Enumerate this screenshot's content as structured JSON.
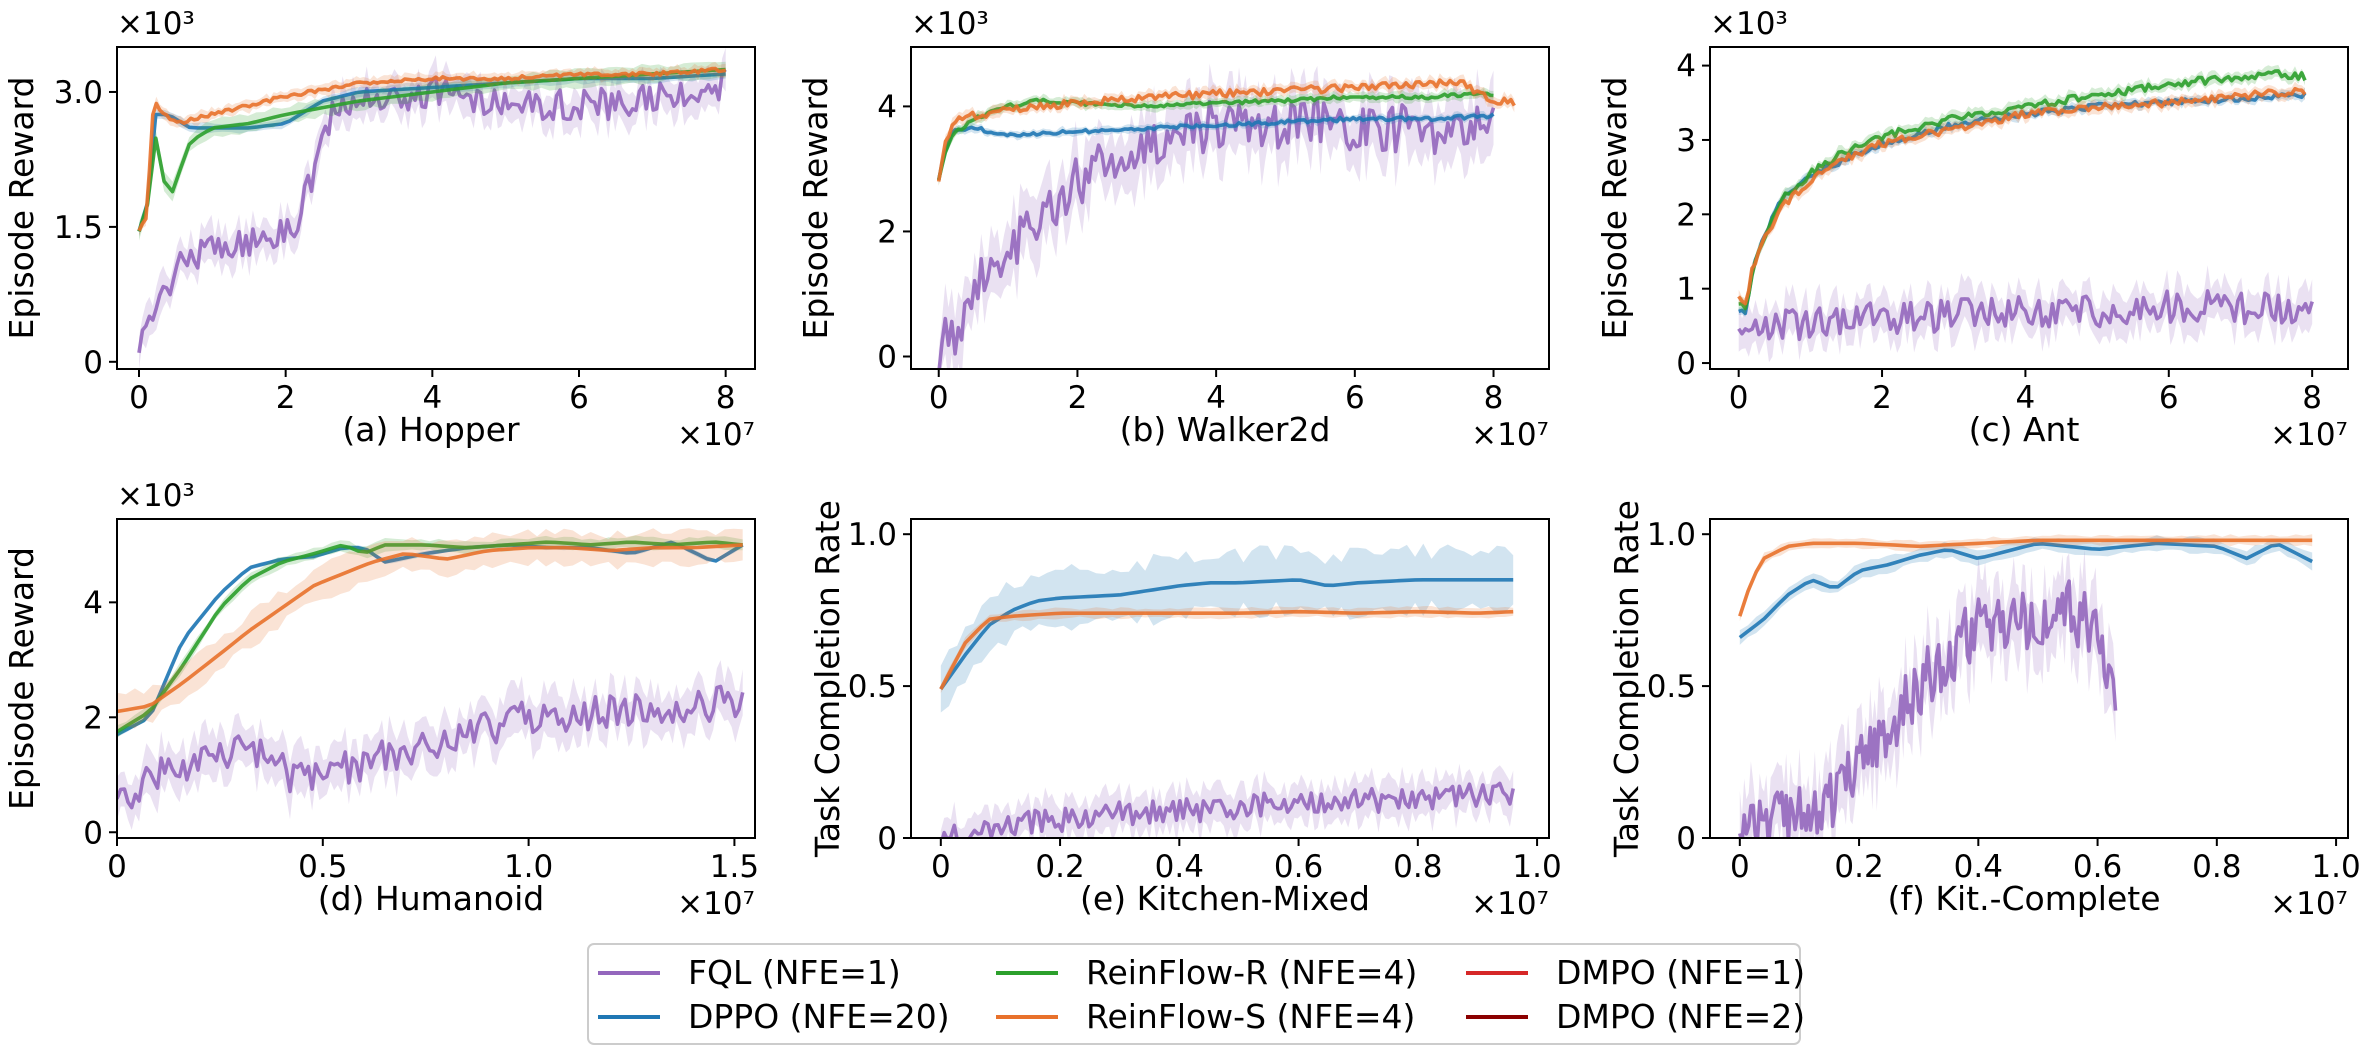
{
  "figure": {
    "legend": [
      {
        "label": "FQL (NFE=1)",
        "color": "#9467bd"
      },
      {
        "label": "DPPO (NFE=20)",
        "color": "#1f77b4"
      },
      {
        "label": "ReinFlow-R (NFE=4)",
        "color": "#2ca02c"
      },
      {
        "label": "ReinFlow-S (NFE=4)",
        "color": "#e8712b"
      },
      {
        "label": "DMPO (NFE=1)",
        "color": "#d62728"
      },
      {
        "label": "DMPO (NFE=2)",
        "color": "#8b0000"
      }
    ]
  },
  "chart_data": [
    {
      "type": "line",
      "title": "(a) Hopper",
      "ylabel": "Episode Reward",
      "x_scale": "×10⁷",
      "y_scale": "×10³",
      "xlim": [
        -0.3,
        8.4
      ],
      "ylim": [
        -0.08,
        3.5
      ],
      "xticks": [
        0,
        2,
        4,
        6,
        8
      ],
      "xtick_labels": [
        "0",
        "2",
        "4",
        "6",
        "8"
      ],
      "yticks": [
        0,
        1.5,
        3.0
      ],
      "ytick_labels": [
        "0",
        "1.5",
        "3.0"
      ],
      "series": [
        {
          "name": "FQL (NFE=1)",
          "color": "#9467bd",
          "noise": 0.18,
          "band": 0.25,
          "x": [
            0,
            0.15,
            0.35,
            0.5,
            0.8,
            1.2,
            1.6,
            2.0,
            2.2,
            2.4,
            2.6,
            3.0,
            3.5,
            4.0,
            5.0,
            6.0,
            7.0,
            8.0
          ],
          "y": [
            0.05,
            0.6,
            0.75,
            1.1,
            1.2,
            1.3,
            1.35,
            1.45,
            1.6,
            2.2,
            2.7,
            2.9,
            2.95,
            3.0,
            2.9,
            2.85,
            2.9,
            3.1
          ]
        },
        {
          "name": "DPPO (NFE=20)",
          "color": "#1f77b4",
          "noise": 0,
          "band": 0.07,
          "x": [
            0,
            0.1,
            0.2,
            0.4,
            0.7,
            1.0,
            1.5,
            2.0,
            2.5,
            3.0,
            4.0,
            5.0,
            6.0,
            7.0,
            8.0
          ],
          "y": [
            1.45,
            1.6,
            2.75,
            2.75,
            2.6,
            2.6,
            2.6,
            2.65,
            2.9,
            3.0,
            3.05,
            3.1,
            3.15,
            3.15,
            3.2
          ]
        },
        {
          "name": "ReinFlow-R (NFE=4)",
          "color": "#2ca02c",
          "noise": 0,
          "band": 0.12,
          "x": [
            0,
            0.1,
            0.2,
            0.3,
            0.4,
            0.5,
            0.7,
            1.0,
            1.5,
            2.0,
            3.0,
            4.0,
            5.0,
            6.0,
            7.0,
            8.0
          ],
          "y": [
            1.45,
            1.6,
            2.6,
            2.2,
            1.75,
            2.0,
            2.45,
            2.6,
            2.65,
            2.75,
            2.9,
            3.0,
            3.1,
            3.15,
            3.2,
            3.25
          ]
        },
        {
          "name": "ReinFlow-S (NFE=4)",
          "color": "#e8712b",
          "noise": 0.02,
          "band": 0.08,
          "x": [
            0,
            0.1,
            0.2,
            0.3,
            0.5,
            1.0,
            1.5,
            2.0,
            3.0,
            4.0,
            5.0,
            6.0,
            7.0,
            8.0
          ],
          "y": [
            1.45,
            1.6,
            2.9,
            2.8,
            2.65,
            2.75,
            2.85,
            2.95,
            3.1,
            3.15,
            3.15,
            3.2,
            3.2,
            3.25
          ]
        }
      ]
    },
    {
      "type": "line",
      "title": "(b) Walker2d",
      "ylabel": "Episode Reward",
      "x_scale": "×10⁷",
      "y_scale": "×10³",
      "xlim": [
        -0.4,
        8.8
      ],
      "ylim": [
        -0.2,
        4.95
      ],
      "xticks": [
        0,
        2,
        4,
        6,
        8
      ],
      "xtick_labels": [
        "0",
        "2",
        "4",
        "6",
        "8"
      ],
      "yticks": [
        0,
        2,
        4
      ],
      "ytick_labels": [
        "0",
        "2",
        "4"
      ],
      "series": [
        {
          "name": "FQL (NFE=1)",
          "color": "#9467bd",
          "noise": 0.4,
          "band": 0.65,
          "x": [
            0,
            0.3,
            0.6,
            1.0,
            1.5,
            2.0,
            2.5,
            3.0,
            3.5,
            4.0,
            5.0,
            6.0,
            7.0,
            8.0
          ],
          "y": [
            0.1,
            0.5,
            1.3,
            1.7,
            2.3,
            2.8,
            3.2,
            3.3,
            3.6,
            3.7,
            3.7,
            3.7,
            3.6,
            3.7
          ]
        },
        {
          "name": "DPPO (NFE=20)",
          "color": "#1f77b4",
          "noise": 0.03,
          "band": 0.08,
          "x": [
            0,
            0.1,
            0.2,
            0.5,
            1.0,
            2.0,
            3.0,
            4.0,
            5.0,
            6.0,
            7.0,
            8.0
          ],
          "y": [
            2.85,
            3.3,
            3.6,
            3.65,
            3.55,
            3.6,
            3.65,
            3.7,
            3.75,
            3.8,
            3.8,
            3.85
          ]
        },
        {
          "name": "ReinFlow-R (NFE=4)",
          "color": "#2ca02c",
          "noise": 0.03,
          "band": 0.1,
          "x": [
            0,
            0.1,
            0.2,
            0.5,
            1.0,
            1.5,
            2.0,
            3.0,
            4.0,
            5.0,
            6.0,
            7.0,
            8.0
          ],
          "y": [
            2.85,
            3.3,
            3.55,
            3.8,
            4.0,
            4.1,
            4.05,
            4.0,
            4.05,
            4.1,
            4.15,
            4.15,
            4.2
          ]
        },
        {
          "name": "ReinFlow-S (NFE=4)",
          "color": "#e8712b",
          "noise": 0.06,
          "band": 0.12,
          "x": [
            0,
            0.1,
            0.2,
            0.5,
            1.0,
            2.0,
            3.0,
            4.0,
            5.0,
            6.0,
            7.0,
            7.5,
            8.0,
            8.3
          ],
          "y": [
            2.85,
            3.4,
            3.75,
            3.85,
            3.95,
            4.05,
            4.15,
            4.2,
            4.25,
            4.3,
            4.35,
            4.4,
            4.1,
            4.05
          ]
        }
      ]
    },
    {
      "type": "line",
      "title": "(c) Ant",
      "ylabel": "Episode Reward",
      "x_scale": "×10⁷",
      "y_scale": "×10³",
      "xlim": [
        -0.4,
        8.5
      ],
      "ylim": [
        -0.08,
        4.25
      ],
      "xticks": [
        0,
        2,
        4,
        6,
        8
      ],
      "xtick_labels": [
        "0",
        "2",
        "4",
        "6",
        "8"
      ],
      "yticks": [
        0,
        1,
        2,
        3,
        4
      ],
      "ytick_labels": [
        "0",
        "1",
        "2",
        "3",
        "4"
      ],
      "series": [
        {
          "name": "FQL (NFE=1)",
          "color": "#9467bd",
          "noise": 0.22,
          "band": 0.35,
          "x": [
            0,
            0.3,
            1.0,
            2.0,
            3.0,
            4.0,
            5.0,
            6.0,
            7.0,
            8.0
          ],
          "y": [
            0.5,
            0.45,
            0.55,
            0.6,
            0.65,
            0.7,
            0.7,
            0.75,
            0.75,
            0.7
          ]
        },
        {
          "name": "DPPO (NFE=20)",
          "color": "#1f77b4",
          "noise": 0.04,
          "band": 0.08,
          "x": [
            0,
            0.1,
            0.2,
            0.4,
            0.6,
            1.0,
            1.5,
            2.0,
            3.0,
            4.0,
            5.0,
            6.0,
            7.0,
            7.9
          ],
          "y": [
            0.7,
            0.7,
            1.3,
            1.8,
            2.2,
            2.5,
            2.75,
            2.95,
            3.2,
            3.35,
            3.45,
            3.5,
            3.55,
            3.6
          ]
        },
        {
          "name": "ReinFlow-R (NFE=4)",
          "color": "#2ca02c",
          "noise": 0.05,
          "band": 0.1,
          "x": [
            0,
            0.1,
            0.2,
            0.4,
            0.6,
            1.0,
            1.5,
            2.0,
            3.0,
            4.0,
            5.0,
            6.0,
            7.0,
            7.5,
            7.9
          ],
          "y": [
            0.8,
            0.7,
            1.3,
            1.8,
            2.2,
            2.55,
            2.85,
            3.05,
            3.3,
            3.45,
            3.6,
            3.75,
            3.85,
            3.9,
            3.85
          ]
        },
        {
          "name": "ReinFlow-S (NFE=4)",
          "color": "#e8712b",
          "noise": 0.05,
          "band": 0.1,
          "x": [
            0,
            0.1,
            0.2,
            0.4,
            0.6,
            1.0,
            1.5,
            2.0,
            3.0,
            4.0,
            5.0,
            6.0,
            7.0,
            7.9
          ],
          "y": [
            0.9,
            0.8,
            1.3,
            1.75,
            2.1,
            2.45,
            2.75,
            2.95,
            3.15,
            3.35,
            3.45,
            3.5,
            3.6,
            3.65
          ]
        }
      ]
    },
    {
      "type": "line",
      "title": "(d) Humanoid",
      "ylabel": "Episode Reward",
      "x_scale": "×10⁷",
      "y_scale": "×10³",
      "xlim": [
        0,
        1.55
      ],
      "ylim": [
        -0.1,
        5.45
      ],
      "xticks": [
        0,
        0.5,
        1.0,
        1.5
      ],
      "xtick_labels": [
        "0",
        "0.5",
        "1.0",
        "1.5"
      ],
      "yticks": [
        0,
        2,
        4
      ],
      "ytick_labels": [
        "0",
        "2",
        "4"
      ],
      "series": [
        {
          "name": "FQL (NFE=1)",
          "color": "#9467bd",
          "noise": 0.3,
          "band": 0.5,
          "x": [
            0,
            0.05,
            0.1,
            0.2,
            0.3,
            0.4,
            0.42,
            0.5,
            0.6,
            0.7,
            0.8,
            1.0,
            1.2,
            1.4,
            1.52
          ],
          "y": [
            0.4,
            0.7,
            1.0,
            1.3,
            1.4,
            1.3,
            0.85,
            1.0,
            1.2,
            1.4,
            1.6,
            2.0,
            2.1,
            2.2,
            2.3
          ]
        },
        {
          "name": "DPPO (NFE=20)",
          "color": "#1f77b4",
          "noise": 0,
          "band": 0.05,
          "x": [
            0,
            0.08,
            0.16,
            0.25,
            0.32,
            0.4,
            0.48,
            0.55,
            0.6,
            0.65,
            0.75,
            0.85,
            0.95,
            1.05,
            1.15,
            1.25,
            1.35,
            1.45,
            1.52
          ],
          "y": [
            1.7,
            2.0,
            3.35,
            4.15,
            4.6,
            4.75,
            4.8,
            4.95,
            4.95,
            4.7,
            4.85,
            4.95,
            5.0,
            4.95,
            4.95,
            4.85,
            5.05,
            4.7,
            5.0
          ]
        },
        {
          "name": "ReinFlow-R (NFE=4)",
          "color": "#2ca02c",
          "noise": 0,
          "band": 0.12,
          "x": [
            0,
            0.08,
            0.16,
            0.25,
            0.32,
            0.4,
            0.48,
            0.55,
            0.6,
            0.65,
            0.75,
            0.85,
            0.95,
            1.05,
            1.15,
            1.25,
            1.35,
            1.45,
            1.52
          ],
          "y": [
            1.75,
            2.1,
            2.9,
            3.9,
            4.4,
            4.7,
            4.85,
            5.0,
            4.85,
            5.0,
            5.0,
            4.95,
            5.0,
            5.05,
            5.0,
            5.05,
            5.0,
            5.05,
            5.0
          ]
        },
        {
          "name": "ReinFlow-S (NFE=4)",
          "color": "#e8712b",
          "noise": 0,
          "band": 0.35,
          "x": [
            0,
            0.08,
            0.16,
            0.25,
            0.32,
            0.4,
            0.48,
            0.55,
            0.62,
            0.7,
            0.8,
            0.9,
            1.0,
            1.1,
            1.2,
            1.3,
            1.4,
            1.52
          ],
          "y": [
            2.1,
            2.2,
            2.6,
            3.1,
            3.5,
            3.9,
            4.3,
            4.5,
            4.7,
            4.85,
            4.75,
            4.9,
            4.95,
            4.95,
            4.9,
            4.95,
            4.95,
            5.0
          ]
        }
      ]
    },
    {
      "type": "line",
      "title": "(e) Kitchen-Mixed",
      "ylabel": "Task Completion Rate",
      "x_scale": "×10⁷",
      "y_scale": "",
      "xlim": [
        -0.05,
        1.02
      ],
      "ylim": [
        0,
        1.05
      ],
      "xticks": [
        0,
        0.2,
        0.4,
        0.6,
        0.8,
        1.0
      ],
      "xtick_labels": [
        "0",
        "0.2",
        "0.4",
        "0.6",
        "0.8",
        "1.0"
      ],
      "yticks": [
        0,
        0.5,
        1.0
      ],
      "ytick_labels": [
        "0",
        "0.5",
        "1.0"
      ],
      "series": [
        {
          "name": "FQL (NFE=1)",
          "color": "#9467bd",
          "noise": 0.04,
          "band": 0.08,
          "x": [
            0,
            0.05,
            0.1,
            0.2,
            0.3,
            0.4,
            0.5,
            0.6,
            0.7,
            0.8,
            0.9,
            0.96
          ],
          "y": [
            0.0,
            0.02,
            0.04,
            0.06,
            0.08,
            0.09,
            0.1,
            0.12,
            0.12,
            0.13,
            0.14,
            0.15
          ]
        },
        {
          "name": "DPPO (NFE=20)",
          "color": "#1f77b4",
          "noise": 0,
          "band": 0.12,
          "x": [
            0,
            0.04,
            0.08,
            0.12,
            0.16,
            0.2,
            0.3,
            0.4,
            0.45,
            0.5,
            0.6,
            0.65,
            0.7,
            0.8,
            0.9,
            0.96
          ],
          "y": [
            0.49,
            0.6,
            0.7,
            0.75,
            0.78,
            0.79,
            0.8,
            0.83,
            0.84,
            0.84,
            0.85,
            0.83,
            0.84,
            0.85,
            0.85,
            0.85
          ]
        },
        {
          "name": "ReinFlow-S (NFE=4)",
          "color": "#e8712b",
          "noise": 0,
          "band": 0.02,
          "x": [
            0,
            0.04,
            0.08,
            0.12,
            0.2,
            0.3,
            0.4,
            0.5,
            0.6,
            0.7,
            0.8,
            0.9,
            0.96
          ],
          "y": [
            0.49,
            0.64,
            0.72,
            0.73,
            0.74,
            0.74,
            0.74,
            0.74,
            0.745,
            0.74,
            0.745,
            0.74,
            0.745
          ]
        }
      ]
    },
    {
      "type": "line",
      "title": "(f) Kit.-Complete",
      "ylabel": "Task Completion Rate",
      "x_scale": "×10⁷",
      "y_scale": "",
      "xlim": [
        -0.05,
        1.02
      ],
      "ylim": [
        0,
        1.05
      ],
      "xticks": [
        0,
        0.2,
        0.4,
        0.6,
        0.8,
        1.0
      ],
      "xtick_labels": [
        "0",
        "0.2",
        "0.4",
        "0.6",
        "0.8",
        "1.0"
      ],
      "yticks": [
        0,
        0.5,
        1.0
      ],
      "ytick_labels": [
        "0",
        "0.5",
        "1.0"
      ],
      "series": [
        {
          "name": "FQL (NFE=1)",
          "color": "#9467bd",
          "noise": 0.1,
          "band": 0.15,
          "x": [
            0,
            0.05,
            0.1,
            0.15,
            0.2,
            0.25,
            0.3,
            0.35,
            0.4,
            0.45,
            0.5,
            0.55,
            0.6,
            0.62,
            0.63
          ],
          "y": [
            0.0,
            0.05,
            0.1,
            0.12,
            0.25,
            0.35,
            0.5,
            0.6,
            0.7,
            0.72,
            0.7,
            0.75,
            0.68,
            0.55,
            0.4
          ]
        },
        {
          "name": "DPPO (NFE=20)",
          "color": "#1f77b4",
          "noise": 0,
          "band": 0.03,
          "x": [
            0,
            0.04,
            0.08,
            0.12,
            0.16,
            0.2,
            0.25,
            0.3,
            0.35,
            0.4,
            0.5,
            0.6,
            0.7,
            0.8,
            0.85,
            0.9,
            0.96
          ],
          "y": [
            0.66,
            0.72,
            0.8,
            0.85,
            0.82,
            0.88,
            0.9,
            0.93,
            0.95,
            0.92,
            0.97,
            0.95,
            0.97,
            0.96,
            0.92,
            0.97,
            0.91
          ]
        },
        {
          "name": "ReinFlow-S (NFE=4)",
          "color": "#e8712b",
          "noise": 0,
          "band": 0.02,
          "x": [
            0,
            0.02,
            0.04,
            0.08,
            0.12,
            0.2,
            0.3,
            0.4,
            0.5,
            0.6,
            0.7,
            0.8,
            0.9,
            0.96
          ],
          "y": [
            0.73,
            0.85,
            0.92,
            0.96,
            0.97,
            0.97,
            0.96,
            0.97,
            0.98,
            0.98,
            0.98,
            0.98,
            0.98,
            0.98
          ]
        }
      ]
    }
  ]
}
